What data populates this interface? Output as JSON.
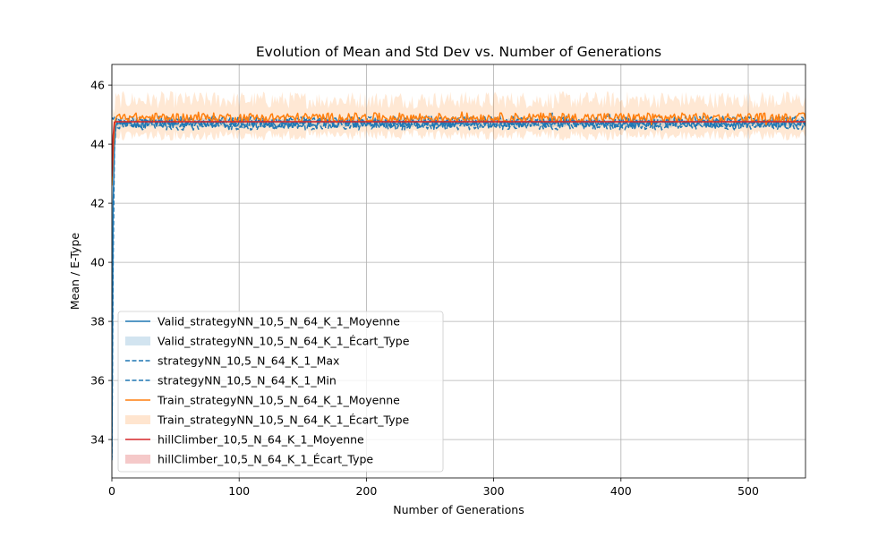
{
  "chart_data": {
    "type": "line",
    "title": "Evolution of Mean and Std Dev vs. Number of Generations",
    "xlabel": "Number of Generations",
    "ylabel": "Mean / E-Type",
    "xlim": [
      0,
      545
    ],
    "ylim": [
      32.7,
      46.7
    ],
    "xticks": [
      "0",
      "100",
      "200",
      "300",
      "400",
      "500"
    ],
    "yticks": [
      "34",
      "36",
      "38",
      "40",
      "42",
      "44",
      "46"
    ],
    "grid": true,
    "legend_position": "lower-left",
    "colors": {
      "blue": "#1f77b4",
      "orange": "#ff7f0e",
      "red": "#d62728"
    },
    "series": [
      {
        "name": "Valid_strategyNN_10,5_N_64_K_1_Moyenne",
        "kind": "line",
        "color": "#1f77b4",
        "start": [
          [
            0,
            33.4
          ],
          [
            1,
            42.0
          ],
          [
            2,
            44.0
          ],
          [
            3,
            44.6
          ]
        ],
        "steady_mean": 44.7,
        "noise": 0.13
      },
      {
        "name": "Valid_strategyNN_10,5_N_64_K_1_Écart_Type",
        "kind": "band",
        "color": "#1f77b4",
        "steady_low": 44.6,
        "steady_high": 44.85
      },
      {
        "name": "strategyNN_10,5_N_64_K_1_Max",
        "kind": "dashed",
        "color": "#1f77b4",
        "steady_mean": 44.8,
        "noise": 0.15
      },
      {
        "name": "strategyNN_10,5_N_64_K_1_Min",
        "kind": "dashed",
        "color": "#1f77b4",
        "start": [
          [
            0,
            33.3
          ],
          [
            1,
            40.0
          ],
          [
            2,
            43.8
          ],
          [
            3,
            44.5
          ]
        ],
        "steady_mean": 44.62,
        "noise": 0.14
      },
      {
        "name": "Train_strategyNN_10,5_N_64_K_1_Moyenne",
        "kind": "line",
        "color": "#ff7f0e",
        "start": [
          [
            0,
            42.6
          ],
          [
            1,
            43.8
          ],
          [
            2,
            44.6
          ]
        ],
        "steady_mean": 44.9,
        "noise": 0.16
      },
      {
        "name": "Train_strategyNN_10,5_N_64_K_1_Écart_Type",
        "kind": "band",
        "color": "#ff7f0e",
        "steady_low": 44.3,
        "steady_high": 45.5
      },
      {
        "name": "hillClimber_10,5_N_64_K_1_Moyenne",
        "kind": "line",
        "color": "#d62728",
        "start": [
          [
            0,
            42.9
          ],
          [
            1,
            44.3
          ],
          [
            2,
            44.75
          ]
        ],
        "steady_mean": 44.76,
        "noise": 0.0
      },
      {
        "name": "hillClimber_10,5_N_64_K_1_Écart_Type",
        "kind": "band",
        "color": "#d62728",
        "steady_low": 44.73,
        "steady_high": 44.79
      }
    ]
  }
}
